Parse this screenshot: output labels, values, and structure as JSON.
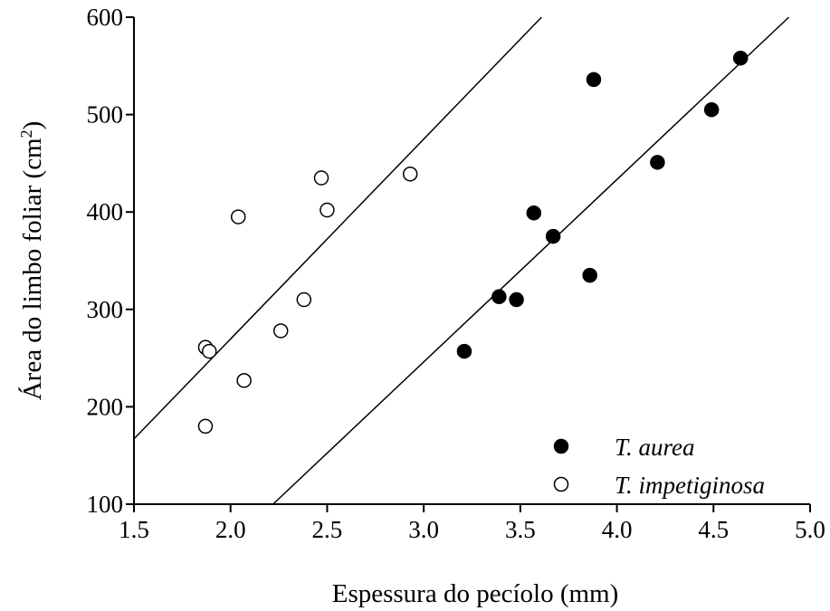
{
  "chart_data": {
    "type": "scatter",
    "xlabel": "Espessura do pecíolo (mm)",
    "ylabel_main": "Área do limbo foliar (cm",
    "ylabel_sup": "2",
    "ylabel_end": ")",
    "xlim": [
      1.5,
      5.0
    ],
    "ylim": [
      100,
      600
    ],
    "xticks": [
      "1.5",
      "2.0",
      "2.5",
      "3.0",
      "3.5",
      "4.0",
      "4.5",
      "5.0"
    ],
    "yticks": [
      "100",
      "200",
      "300",
      "400",
      "500",
      "600"
    ],
    "grid": false,
    "legend_position": "bottom-right",
    "series": [
      {
        "name": "T. aurea",
        "marker": "filled-circle",
        "color": "#000000",
        "points": [
          {
            "x": 3.21,
            "y": 257
          },
          {
            "x": 3.39,
            "y": 313
          },
          {
            "x": 3.48,
            "y": 310
          },
          {
            "x": 3.57,
            "y": 399
          },
          {
            "x": 3.67,
            "y": 375
          },
          {
            "x": 3.86,
            "y": 335
          },
          {
            "x": 3.88,
            "y": 536
          },
          {
            "x": 4.21,
            "y": 451
          },
          {
            "x": 4.49,
            "y": 505
          },
          {
            "x": 4.64,
            "y": 558
          }
        ],
        "fit_line": {
          "x": [
            2.22,
            4.89
          ],
          "y": [
            100,
            600
          ]
        }
      },
      {
        "name": "T. impetiginosa",
        "marker": "open-circle",
        "color": "#000000",
        "points": [
          {
            "x": 1.87,
            "y": 180
          },
          {
            "x": 1.87,
            "y": 261
          },
          {
            "x": 1.89,
            "y": 257
          },
          {
            "x": 2.04,
            "y": 395
          },
          {
            "x": 2.07,
            "y": 227
          },
          {
            "x": 2.26,
            "y": 278
          },
          {
            "x": 2.38,
            "y": 310
          },
          {
            "x": 2.47,
            "y": 435
          },
          {
            "x": 2.5,
            "y": 402
          },
          {
            "x": 2.93,
            "y": 439
          }
        ],
        "fit_line": {
          "x": [
            1.5,
            3.61
          ],
          "y": [
            167,
            600
          ]
        }
      }
    ]
  }
}
